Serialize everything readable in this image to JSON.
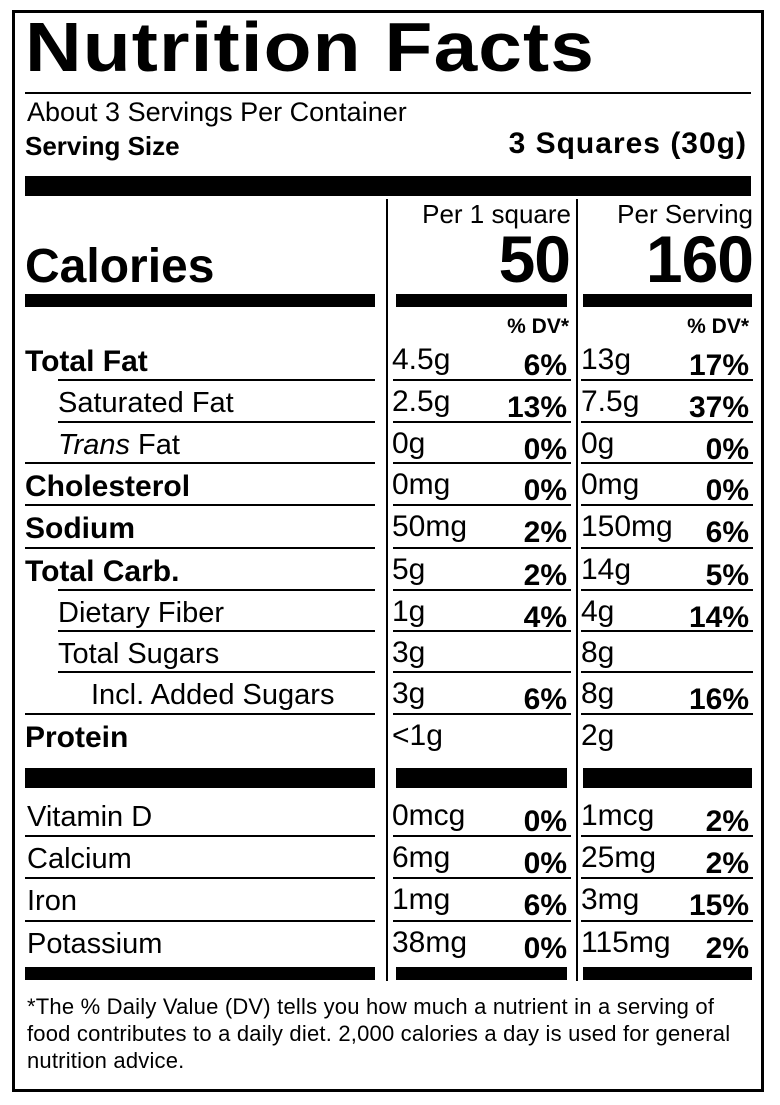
{
  "title": "Nutrition Facts",
  "servings_per_container": "About 3 Servings Per Container",
  "serving_size_label": "Serving Size",
  "serving_size_value": "3 Squares (30g)",
  "col1_header": "Per 1 square",
  "col2_header": "Per Serving",
  "calories_label": "Calories",
  "calories_col1": "50",
  "calories_col2": "160",
  "dv_header": "% DV*",
  "nutrients": [
    {
      "name": "Total Fat",
      "style": "bold",
      "indent": 0,
      "a1": "4.5g",
      "p1": "6%",
      "a2": "13g",
      "p2": "17%"
    },
    {
      "name": "Saturated Fat",
      "style": "normal",
      "indent": 1,
      "a1": "2.5g",
      "p1": "13%",
      "a2": "7.5g",
      "p2": "37%"
    },
    {
      "name_italic": "Trans",
      "name": " Fat",
      "style": "normal",
      "indent": 1,
      "a1": "0g",
      "p1": "0%",
      "a2": "0g",
      "p2": "0%"
    },
    {
      "name": "Cholesterol",
      "style": "bold",
      "indent": 0,
      "a1": "0mg",
      "p1": "0%",
      "a2": "0mg",
      "p2": "0%"
    },
    {
      "name": "Sodium",
      "style": "bold",
      "indent": 0,
      "a1": "50mg",
      "p1": "2%",
      "a2": "150mg",
      "p2": "6%"
    },
    {
      "name": "Total Carb.",
      "style": "bold",
      "indent": 0,
      "a1": "5g",
      "p1": "2%",
      "a2": "14g",
      "p2": "5%"
    },
    {
      "name": "Dietary Fiber",
      "style": "normal",
      "indent": 1,
      "a1": "1g",
      "p1": "4%",
      "a2": "4g",
      "p2": "14%"
    },
    {
      "name": "Total Sugars",
      "style": "normal",
      "indent": 1,
      "a1": "3g",
      "p1": "",
      "a2": "8g",
      "p2": ""
    },
    {
      "name": "Incl. Added Sugars",
      "style": "normal",
      "indent": 2,
      "a1": "3g",
      "p1": "6%",
      "a2": "8g",
      "p2": "16%"
    },
    {
      "name": "Protein",
      "style": "bold",
      "indent": 0,
      "a1": "<1g",
      "p1": "",
      "a2": "2g",
      "p2": ""
    }
  ],
  "vitamins": [
    {
      "name": "Vitamin D",
      "a1": "0mcg",
      "p1": "0%",
      "a2": "1mcg",
      "p2": "2%"
    },
    {
      "name": "Calcium",
      "a1": "6mg",
      "p1": "0%",
      "a2": "25mg",
      "p2": "2%"
    },
    {
      "name": "Iron",
      "a1": "1mg",
      "p1": "6%",
      "a2": "3mg",
      "p2": "15%"
    },
    {
      "name": "Potassium",
      "a1": "38mg",
      "p1": "0%",
      "a2": "115mg",
      "p2": "2%"
    }
  ],
  "footnote": "*The % Daily Value (DV) tells you how much a nutrient in a serving of food contributes to a daily diet. 2,000 calories a day is used for general nutrition advice."
}
